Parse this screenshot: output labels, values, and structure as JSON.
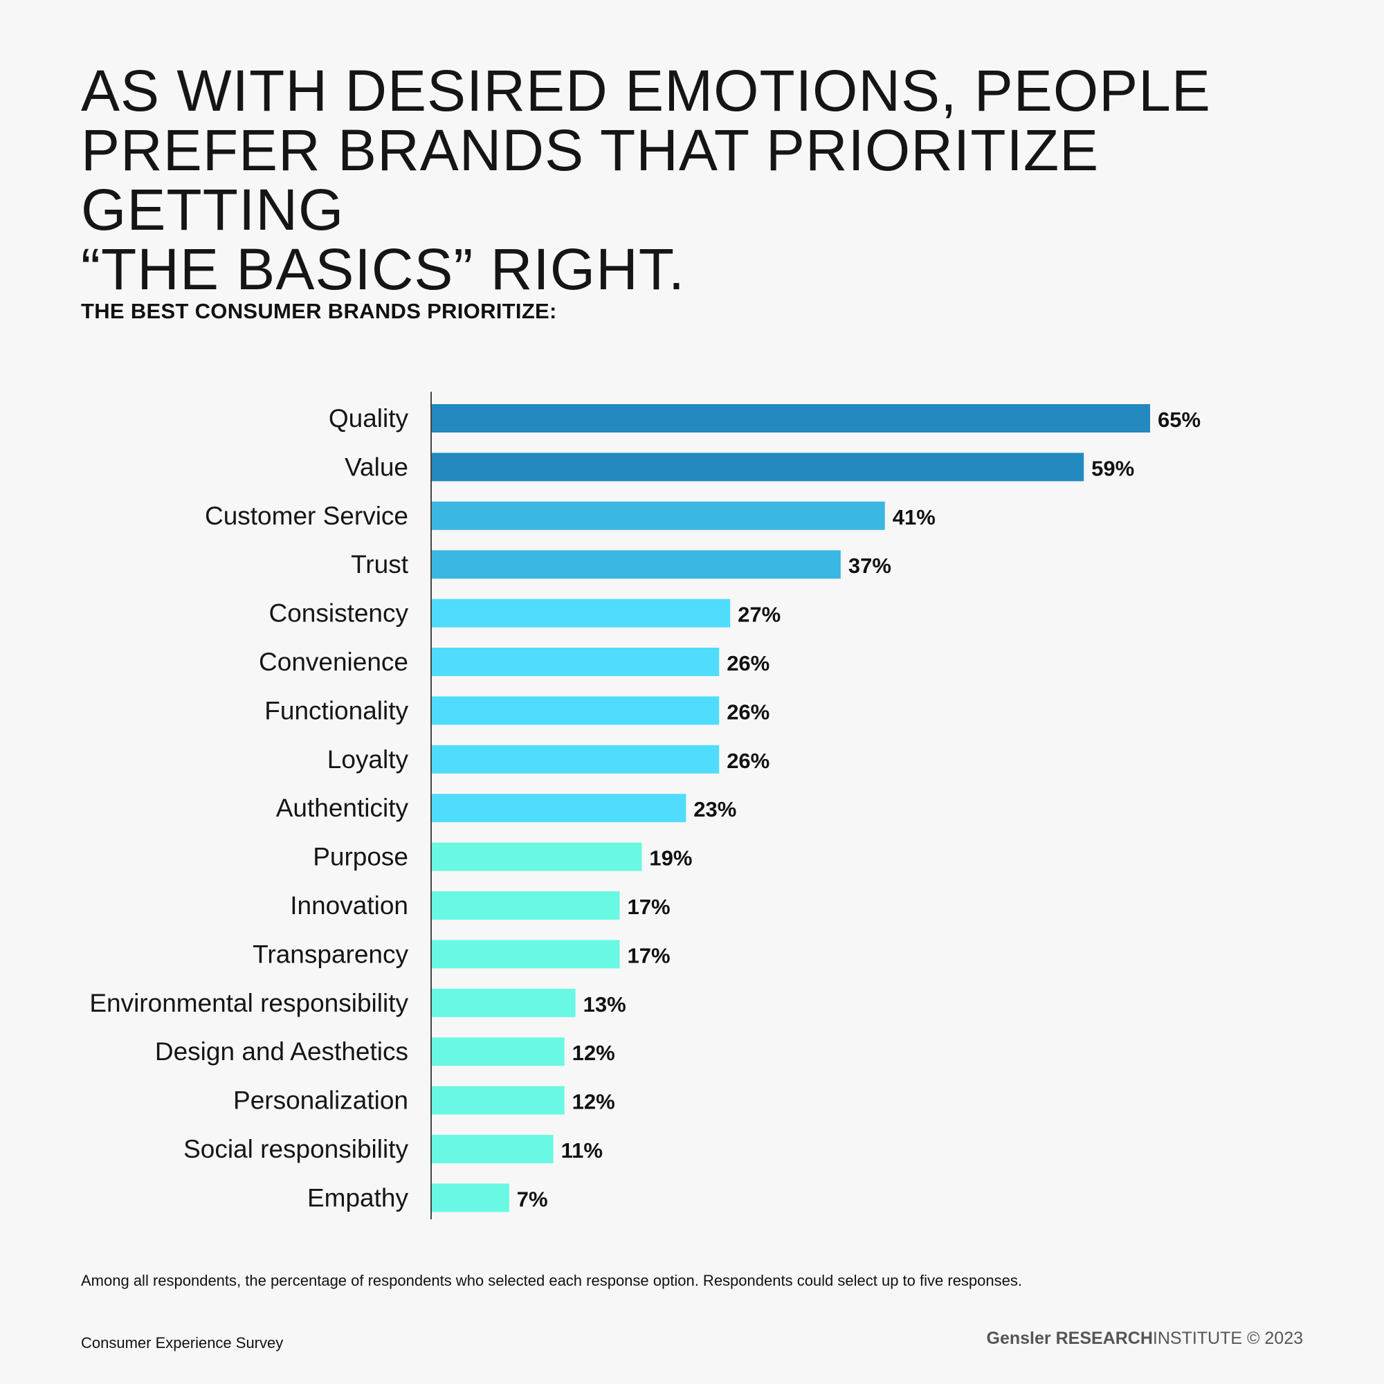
{
  "headline": {
    "line1": "AS WITH DESIRED EMOTIONS, PEOPLE",
    "line2": "PREFER BRANDS THAT PRIORITIZE GETTING",
    "line3": "“THE BASICS” RIGHT."
  },
  "colors": {
    "dark_blue": "#2489bf",
    "mid_blue": "#3bb7e3",
    "light_blue": "#4fdcfd",
    "aqua": "#68f8e3",
    "axis": "#444444"
  },
  "chart_data": {
    "type": "bar",
    "orientation": "horizontal",
    "title": "THE BEST CONSUMER BRANDS PRIORITIZE:",
    "xlabel": "",
    "ylabel": "",
    "xlim": [
      0,
      65
    ],
    "value_suffix": "%",
    "categories": [
      "Quality",
      "Value",
      "Customer Service",
      "Trust",
      "Consistency",
      "Convenience",
      "Functionality",
      "Loyalty",
      "Authenticity",
      "Purpose",
      "Innovation",
      "Transparency",
      "Environmental responsibility",
      "Design and Aesthetics",
      "Personalization",
      "Social responsibility",
      "Empathy"
    ],
    "values": [
      65,
      59,
      41,
      37,
      27,
      26,
      26,
      26,
      23,
      19,
      17,
      17,
      13,
      12,
      12,
      11,
      7
    ],
    "color_groups": [
      "dark_blue",
      "dark_blue",
      "mid_blue",
      "mid_blue",
      "light_blue",
      "light_blue",
      "light_blue",
      "light_blue",
      "light_blue",
      "aqua",
      "aqua",
      "aqua",
      "aqua",
      "aqua",
      "aqua",
      "aqua",
      "aqua"
    ],
    "value_labels": [
      "65%",
      "59%",
      "41%",
      "37%",
      "27%",
      "26%",
      "26%",
      "26%",
      "23%",
      "19%",
      "17%",
      "17%",
      "13%",
      "12%",
      "12%",
      "11%",
      "7%"
    ],
    "grid": false,
    "legend": "none"
  },
  "footnote": "Among all respondents, the percentage of respondents who selected each response option. Respondents could select up to five responses.",
  "source": "Consumer Experience Survey",
  "credit": {
    "brand": "Gensler",
    "research": "RESEARCH",
    "institute": "INSTITUTE",
    "year": "© 2023"
  }
}
